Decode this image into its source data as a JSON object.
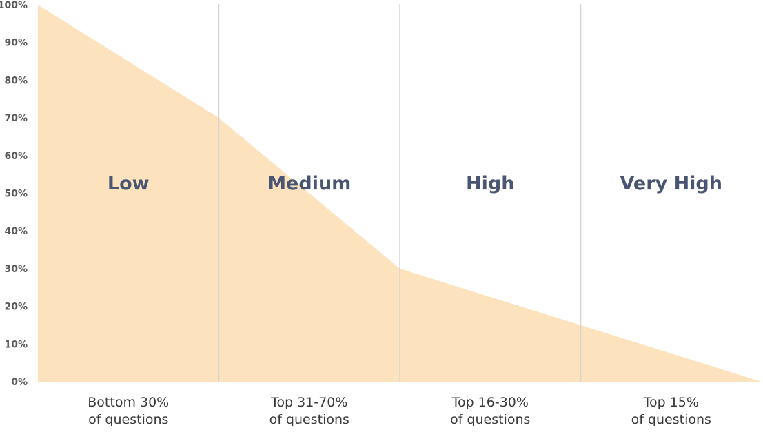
{
  "colors": {
    "area_fill": "#fde3bd",
    "divider": "#d5d5d5",
    "band_label": "#4a5573",
    "tick_text": "#58595b",
    "category_text": "#3a3a3a"
  },
  "chart_data": {
    "type": "area",
    "title": "",
    "xlabel": "",
    "ylabel": "",
    "ylim": [
      0,
      100
    ],
    "yticks": [
      "0%",
      "10%",
      "20%",
      "30%",
      "40%",
      "50%",
      "60%",
      "70%",
      "80%",
      "90%",
      "100%"
    ],
    "x": [
      0,
      1,
      2,
      3,
      4
    ],
    "values": [
      100,
      70,
      30,
      15,
      0
    ],
    "bands": [
      {
        "label": "Low",
        "category_lines": [
          "Bottom 30%",
          "of questions"
        ]
      },
      {
        "label": "Medium",
        "category_lines": [
          "Top 31-70%",
          "of questions"
        ]
      },
      {
        "label": "High",
        "category_lines": [
          "Top 16-30%",
          "of questions"
        ]
      },
      {
        "label": "Very High",
        "category_lines": [
          "Top 15%",
          "of questions"
        ]
      }
    ],
    "grid": false,
    "legend": "none"
  }
}
